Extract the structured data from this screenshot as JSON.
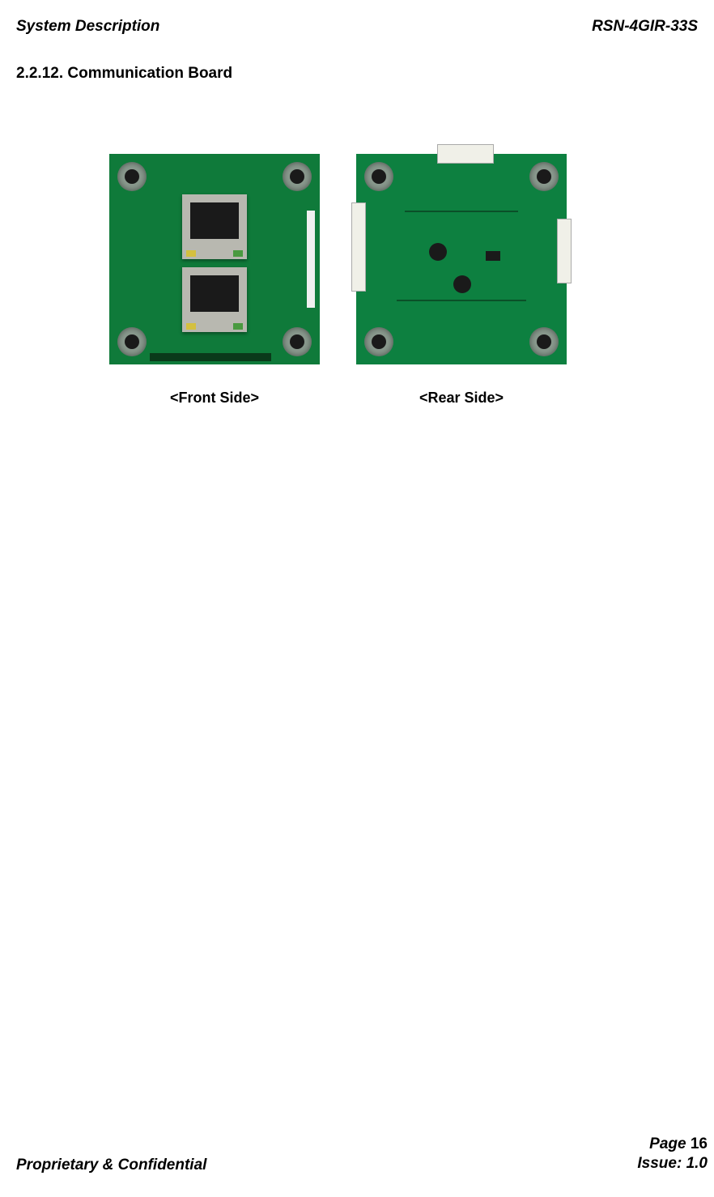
{
  "header": {
    "left": "System Description",
    "right": "RSN-4GIR-33S"
  },
  "section": {
    "heading": "2.2.12. Communication Board"
  },
  "captions": {
    "front": "<Front Side>",
    "rear": "<Rear Side>"
  },
  "images": {
    "front": {
      "bg_color": "#0f7a3a",
      "hole_color": "#8a9a8e",
      "rj45_body": "#b8b8b0",
      "led_yellow": "#d4c040",
      "led_green": "#4a9a40"
    },
    "rear": {
      "bg_color": "#0d8040",
      "hole_color": "#8a9a8e",
      "connector_color": "#f0f0e8",
      "chip_color": "#1a1a1a",
      "trace_color": "#0a5028"
    }
  },
  "footer": {
    "left": "Proprietary & Confidential",
    "page_label": "Page ",
    "page_number": "16",
    "issue": "Issue: 1.0"
  }
}
